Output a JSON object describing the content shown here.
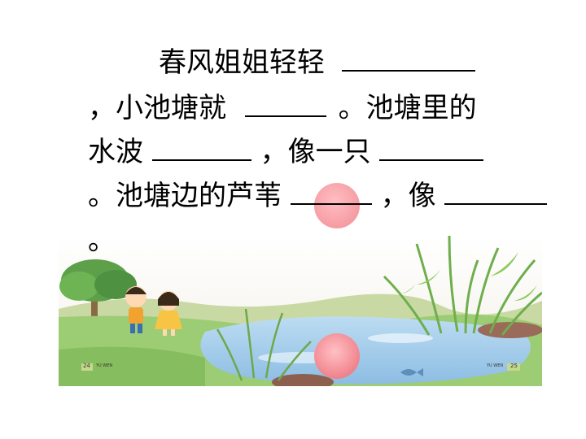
{
  "passage": {
    "line1_text": "春风姐姐轻轻",
    "line2_start": "，小池塘就",
    "line2_end": "。池塘里的",
    "line3_start": "水波",
    "line3_mid": "，像一只",
    "line4_start": "。池塘边的芦苇",
    "line4_mid": "，像",
    "line5_text": "。"
  },
  "book": {
    "page_left": "24",
    "page_right": "25",
    "footer_label": "YU WEN"
  },
  "colors": {
    "text": "#000000",
    "sky": "#f5f1ec",
    "pond": "#9fc9e8",
    "grass": "#8cc46a",
    "reed": "#7fb55a",
    "sun": "#f48a92"
  }
}
